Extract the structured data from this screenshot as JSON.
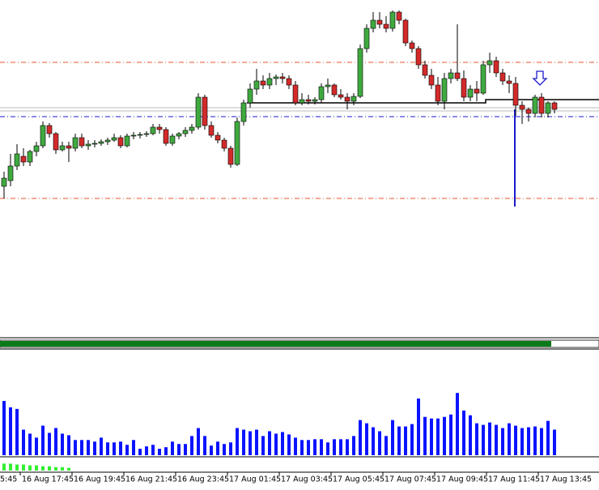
{
  "chart_data": {
    "type": "candlestick",
    "up_color": "#3faa3f",
    "down_color": "#d42a2a",
    "ylim": [
      0,
      415
    ],
    "open": [
      185,
      192,
      210,
      222,
      215,
      228,
      235,
      260,
      250,
      230,
      235,
      232,
      245,
      235,
      237,
      238,
      240,
      242,
      245,
      235,
      247,
      248,
      249,
      250,
      258,
      255,
      238,
      247,
      250,
      254,
      258,
      295,
      260,
      248,
      242,
      232,
      212,
      265,
      288,
      305,
      315,
      310,
      318,
      320,
      318,
      310,
      288,
      292,
      290,
      292,
      308,
      310,
      298,
      295,
      290,
      296,
      355,
      380,
      390,
      385,
      380,
      400,
      390,
      362,
      355,
      335,
      322,
      310,
      290,
      318,
      325,
      318,
      295,
      305,
      300,
      335,
      340,
      325,
      315,
      312,
      285,
      280,
      275,
      295,
      275,
      288
    ],
    "high": [
      203,
      225,
      237,
      232,
      230,
      240,
      265,
      263,
      252,
      240,
      240,
      250,
      250,
      242,
      242,
      243,
      245,
      250,
      248,
      250,
      252,
      252,
      253,
      262,
      262,
      258,
      250,
      252,
      258,
      262,
      300,
      298,
      265,
      252,
      245,
      235,
      270,
      292,
      312,
      330,
      322,
      325,
      323,
      325,
      322,
      315,
      300,
      298,
      295,
      312,
      318,
      312,
      305,
      300,
      300,
      360,
      385,
      400,
      400,
      395,
      402,
      402,
      392,
      365,
      358,
      340,
      330,
      320,
      325,
      330,
      385,
      328,
      310,
      315,
      340,
      350,
      345,
      330,
      322,
      320,
      290,
      282,
      298,
      300,
      290,
      290
    ],
    "low": [
      170,
      185,
      205,
      210,
      210,
      222,
      232,
      245,
      225,
      228,
      215,
      228,
      232,
      230,
      233,
      235,
      236,
      240,
      232,
      233,
      243,
      244,
      246,
      248,
      250,
      235,
      235,
      243,
      246,
      250,
      255,
      255,
      245,
      238,
      228,
      208,
      210,
      260,
      282,
      298,
      305,
      305,
      310,
      312,
      305,
      285,
      285,
      286,
      286,
      288,
      300,
      295,
      292,
      280,
      285,
      294,
      350,
      375,
      380,
      375,
      376,
      385,
      358,
      350,
      330,
      318,
      305,
      285,
      280,
      312,
      315,
      290,
      290,
      290,
      298,
      325,
      320,
      310,
      300,
      272,
      262,
      265,
      270,
      270,
      270,
      275
    ],
    "close": [
      195,
      210,
      225,
      215,
      228,
      235,
      260,
      250,
      230,
      235,
      232,
      245,
      235,
      237,
      238,
      240,
      242,
      245,
      235,
      247,
      248,
      249,
      250,
      258,
      255,
      238,
      247,
      250,
      254,
      258,
      295,
      260,
      248,
      242,
      232,
      212,
      265,
      288,
      305,
      315,
      310,
      318,
      320,
      318,
      310,
      288,
      292,
      290,
      292,
      308,
      310,
      298,
      295,
      290,
      296,
      355,
      380,
      390,
      385,
      380,
      400,
      390,
      362,
      355,
      335,
      322,
      310,
      290,
      318,
      325,
      318,
      295,
      305,
      300,
      335,
      340,
      325,
      315,
      312,
      285,
      280,
      275,
      295,
      275,
      288,
      280
    ],
    "levels": [
      {
        "value": 338,
        "color": "#e8562a"
      },
      {
        "value": 170,
        "color": "#e8562a"
      },
      {
        "value": 271,
        "color": "#1a1acc"
      }
    ],
    "volume": {
      "ylim": [
        0,
        132
      ],
      "color": "#0a14ff",
      "values": [
        68,
        60,
        58,
        32,
        27,
        22,
        37,
        28,
        34,
        27,
        25,
        19,
        19,
        19,
        17,
        22,
        16,
        16,
        17,
        13,
        19,
        8,
        11,
        13,
        8,
        10,
        17,
        14,
        14,
        24,
        34,
        24,
        12,
        17,
        14,
        16,
        34,
        32,
        30,
        32,
        24,
        30,
        27,
        29,
        26,
        22,
        19,
        19,
        20,
        20,
        16,
        20,
        20,
        20,
        24,
        44,
        40,
        35,
        30,
        24,
        44,
        36,
        36,
        39,
        71,
        48,
        46,
        46,
        48,
        51,
        78,
        56,
        50,
        40,
        38,
        41,
        38,
        34,
        40,
        37,
        34,
        35,
        36,
        34,
        43,
        32
      ]
    },
    "indicator": {
      "ylim": [
        0,
        14
      ],
      "color": "#33ee33",
      "values": [
        8,
        8,
        7,
        7,
        6,
        6,
        5,
        5,
        4,
        4,
        3
      ]
    },
    "x_labels": [
      "5:45",
      "16 Aug 17:45",
      "16 Aug 19:45",
      "16 Aug 21:45",
      "16 Aug 23:45",
      "17 Aug 01:45",
      "17 Aug 03:45",
      "17 Aug 05:45",
      "17 Aug 07:45",
      "17 Aug 09:45",
      "17 Aug 11:45",
      "17 Aug 13:45"
    ]
  }
}
